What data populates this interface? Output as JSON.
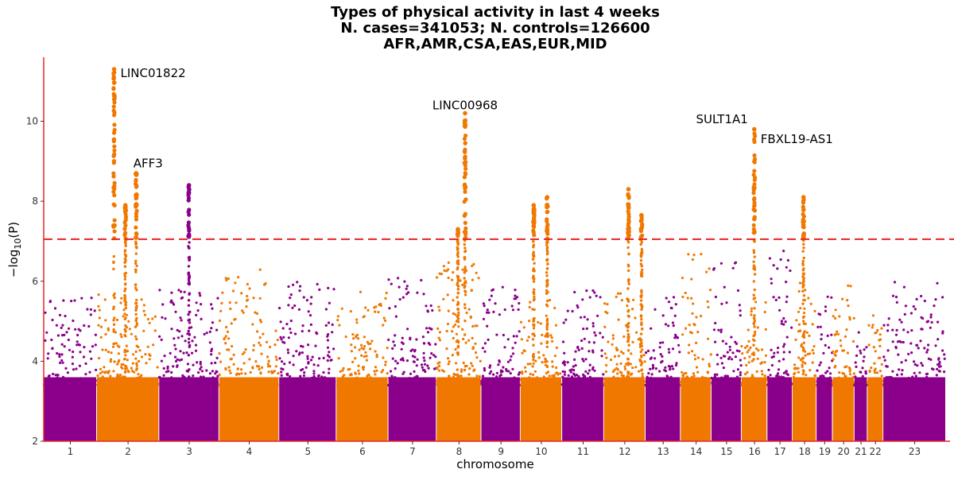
{
  "chart_data": {
    "type": "scatter",
    "subtype": "manhattan",
    "title": [
      "Types of physical activity in last 4 weeks",
      "N. cases=341053; N. controls=126600",
      "AFR,AMR,CSA,EAS,EUR,MID"
    ],
    "xlabel": "chromosome",
    "ylabel_prefix": "−log",
    "ylabel_sub": "10",
    "ylabel_suffix": "(P)",
    "ylim": [
      2,
      11.6
    ],
    "y_ticks": [
      2,
      4,
      6,
      8,
      10
    ],
    "significance_threshold": 7.05,
    "colors": {
      "odd": "#8b008b",
      "even": "#f07800",
      "threshold": "#e8262a",
      "axis": "#e8262a"
    },
    "chromosomes": [
      {
        "label": "1",
        "start": 0.0,
        "end": 0.118,
        "peak": 5.6
      },
      {
        "label": "2",
        "start": 0.118,
        "end": 0.256,
        "peak": 5.7
      },
      {
        "label": "3",
        "start": 0.256,
        "end": 0.389,
        "peak": 5.8
      },
      {
        "label": "4",
        "start": 0.389,
        "end": 0.522,
        "peak": 6.3
      },
      {
        "label": "5",
        "start": 0.522,
        "end": 0.649,
        "peak": 6.0
      },
      {
        "label": "6",
        "start": 0.649,
        "end": 0.764,
        "peak": 5.8
      },
      {
        "label": "7",
        "start": 0.764,
        "end": 0.871,
        "peak": 6.1
      },
      {
        "label": "8",
        "start": 0.871,
        "end": 0.97,
        "peak": 6.5
      },
      {
        "label": "9",
        "start": 0.97,
        "end": 1.057,
        "peak": 5.9
      },
      {
        "label": "10",
        "start": 1.057,
        "end": 1.149,
        "peak": 5.6
      },
      {
        "label": "11",
        "start": 1.149,
        "end": 1.242,
        "peak": 5.8
      },
      {
        "label": "12",
        "start": 1.242,
        "end": 1.334,
        "peak": 5.7
      },
      {
        "label": "13",
        "start": 1.334,
        "end": 1.412,
        "peak": 5.6
      },
      {
        "label": "14",
        "start": 1.412,
        "end": 1.48,
        "peak": 6.8
      },
      {
        "label": "15",
        "start": 1.48,
        "end": 1.547,
        "peak": 6.6
      },
      {
        "label": "16",
        "start": 1.547,
        "end": 1.604,
        "peak": 5.6
      },
      {
        "label": "17",
        "start": 1.604,
        "end": 1.66,
        "peak": 7.0
      },
      {
        "label": "18",
        "start": 1.66,
        "end": 1.713,
        "peak": 6.2
      },
      {
        "label": "19",
        "start": 1.713,
        "end": 1.749,
        "peak": 5.8
      },
      {
        "label": "20",
        "start": 1.749,
        "end": 1.797,
        "peak": 5.9
      },
      {
        "label": "21",
        "start": 1.797,
        "end": 1.826,
        "peak": 5.0
      },
      {
        "label": "22",
        "start": 1.826,
        "end": 1.861,
        "peak": 5.2
      },
      {
        "label": "23",
        "start": 1.861,
        "end": 2.0,
        "peak": 6.0
      }
    ],
    "peaks": [
      {
        "pos": 0.156,
        "max": 11.3
      },
      {
        "pos": 0.181,
        "max": 7.9
      },
      {
        "pos": 0.205,
        "max": 8.7
      },
      {
        "pos": 0.322,
        "max": 8.4
      },
      {
        "pos": 0.934,
        "max": 10.2
      },
      {
        "pos": 0.918,
        "max": 7.3
      },
      {
        "pos": 1.086,
        "max": 7.9
      },
      {
        "pos": 1.116,
        "max": 8.1
      },
      {
        "pos": 1.296,
        "max": 8.3
      },
      {
        "pos": 1.325,
        "max": 7.65
      },
      {
        "pos": 1.575,
        "max": 9.8
      },
      {
        "pos": 1.684,
        "max": 8.1
      }
    ],
    "annotations": [
      {
        "text": "LINC01822",
        "x": 0.156,
        "y": 11.2
      },
      {
        "text": "AFF3",
        "x": 0.181,
        "y": 8.95
      },
      {
        "text": "LINC00968",
        "x": 0.934,
        "y": 10.4
      },
      {
        "text": "SULT1A1",
        "x": 1.575,
        "y": 10.05
      },
      {
        "text": "FBXL19-AS1",
        "x": 1.575,
        "y": 9.55
      }
    ]
  }
}
